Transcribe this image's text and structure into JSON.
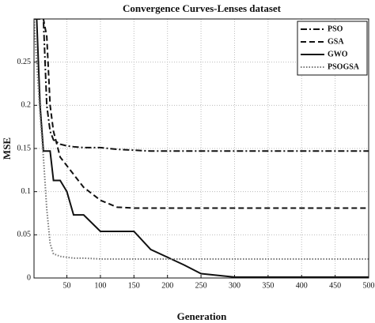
{
  "chart_data": {
    "type": "line",
    "title": "Convergence Curves-Lenses dataset",
    "x_label": "Generation",
    "y_label": "MSE",
    "x": [
      1,
      5,
      10,
      15,
      20,
      25,
      30,
      40,
      50,
      60,
      75,
      100,
      125,
      150,
      175,
      200,
      225,
      250,
      300,
      350,
      400,
      450,
      500
    ],
    "series": [
      {
        "name": "PSO",
        "color": "#111111",
        "style": "dashdot",
        "values": [
          0.3,
          0.3,
          0.3,
          0.3,
          0.2,
          0.17,
          0.16,
          0.155,
          0.153,
          0.152,
          0.151,
          0.151,
          0.149,
          0.148,
          0.147,
          0.147,
          0.147,
          0.147,
          0.147,
          0.147,
          0.147,
          0.147,
          0.147
        ]
      },
      {
        "name": "GSA",
        "color": "#111111",
        "style": "dashed",
        "values": [
          0.3,
          0.3,
          0.3,
          0.3,
          0.28,
          0.2,
          0.17,
          0.14,
          0.13,
          0.12,
          0.105,
          0.09,
          0.082,
          0.081,
          0.081,
          0.081,
          0.081,
          0.081,
          0.081,
          0.081,
          0.081,
          0.081,
          0.081
        ]
      },
      {
        "name": "GWO",
        "color": "#111111",
        "style": "solid",
        "values": [
          0.3,
          0.3,
          0.2,
          0.147,
          0.147,
          0.147,
          0.113,
          0.113,
          0.1,
          0.073,
          0.073,
          0.054,
          0.054,
          0.054,
          0.033,
          0.024,
          0.015,
          0.005,
          0.001,
          0.001,
          0.001,
          0.001,
          0.001
        ]
      },
      {
        "name": "PSOGSA",
        "color": "#777777",
        "style": "dotted",
        "values": [
          0.3,
          0.25,
          0.19,
          0.14,
          0.08,
          0.04,
          0.028,
          0.025,
          0.024,
          0.023,
          0.023,
          0.022,
          0.022,
          0.022,
          0.022,
          0.022,
          0.022,
          0.022,
          0.022,
          0.022,
          0.022,
          0.022,
          0.022
        ]
      }
    ],
    "xlim": [
      1,
      500
    ],
    "xticks": [
      50,
      100,
      150,
      200,
      250,
      300,
      350,
      400,
      450,
      500
    ],
    "ylim": [
      0,
      0.3
    ],
    "yticks": [
      0,
      0.05,
      0.1,
      0.15,
      0.2,
      0.25
    ],
    "grid": true,
    "legend_position": "upper right"
  }
}
